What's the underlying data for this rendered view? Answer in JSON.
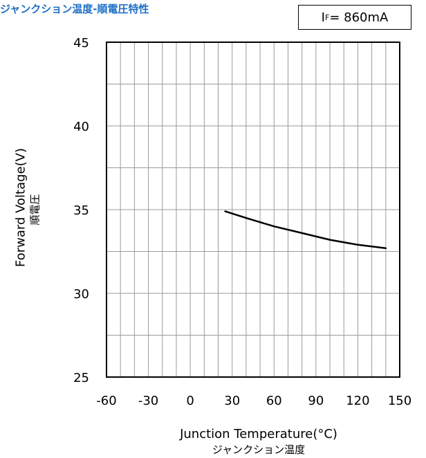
{
  "title": "ジャンクション温度-順電圧特性",
  "condition": {
    "prefix": "I",
    "subscript": "F",
    "value": " = 860mA"
  },
  "chart_data": {
    "type": "line",
    "xlabel": "Junction Temperature(°C)",
    "xlabel_jp": "ジャンクション温度",
    "ylabel": "Forward Voltage(V)",
    "ylabel_jp": "順電圧",
    "xlim": [
      -60,
      150
    ],
    "ylim": [
      25,
      45
    ],
    "x_ticks": [
      -60,
      -30,
      0,
      30,
      60,
      90,
      120,
      150
    ],
    "y_ticks": [
      25,
      30,
      35,
      40,
      45
    ],
    "x_minor_step": 10,
    "y_minor_step": 2.5,
    "grid": true,
    "series": [
      {
        "x": [
          25,
          40,
          60,
          80,
          100,
          120,
          140
        ],
        "y": [
          34.9,
          34.5,
          34.0,
          33.6,
          33.2,
          32.9,
          32.7
        ]
      }
    ]
  }
}
